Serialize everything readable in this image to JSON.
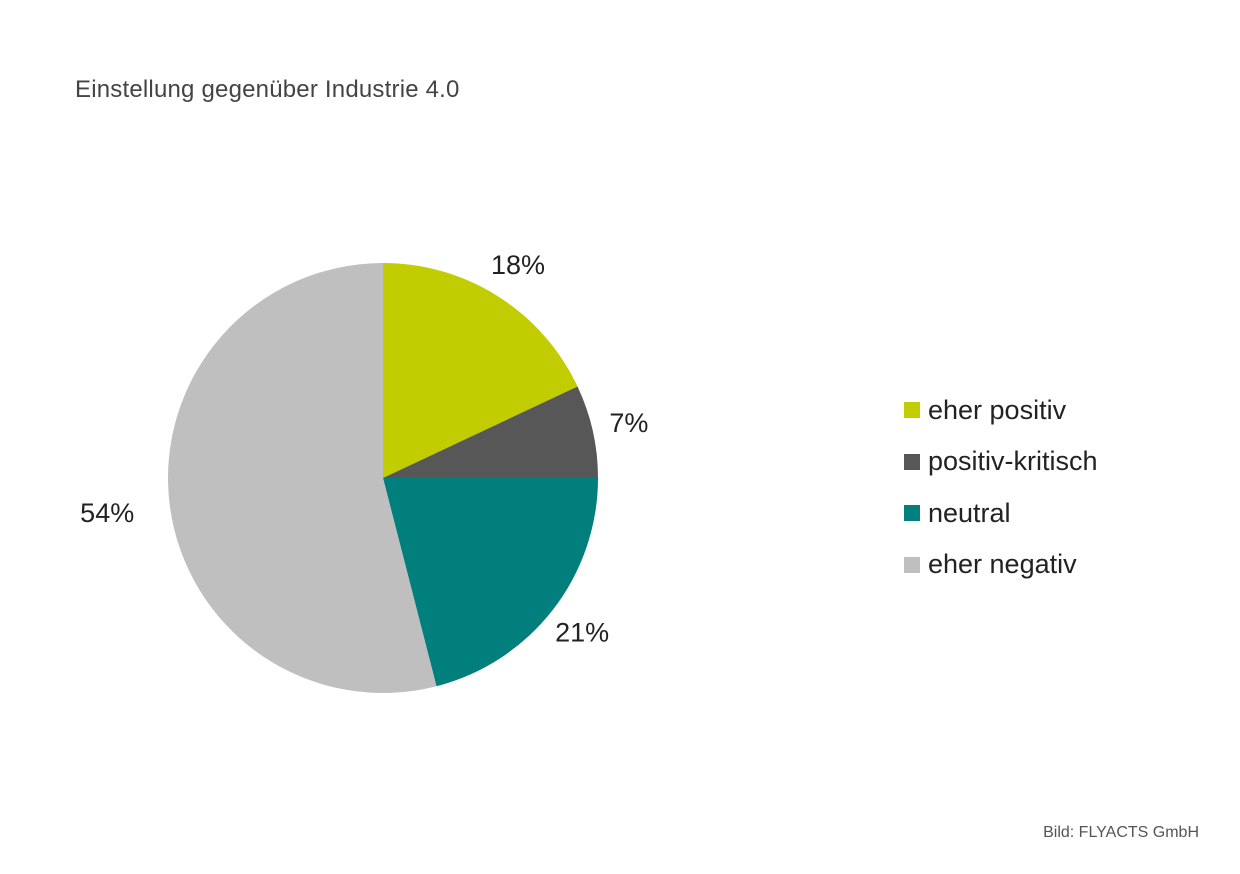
{
  "chart_data": {
    "type": "pie",
    "title": "Einstellung gegenüber Industrie 4.0",
    "categories": [
      "eher positiv",
      "positiv-kritisch",
      "neutral",
      "eher negativ"
    ],
    "values": [
      18,
      7,
      21,
      54
    ],
    "value_labels": [
      "18%",
      "7%",
      "21%",
      "54%"
    ],
    "colors": [
      "#c1cd00",
      "#575757",
      "#007f7d",
      "#bfbfbf"
    ],
    "start_angle": "12 o'clock",
    "direction": "clockwise",
    "legend_position": "right"
  },
  "source": "Bild: FLYACTS GmbH"
}
